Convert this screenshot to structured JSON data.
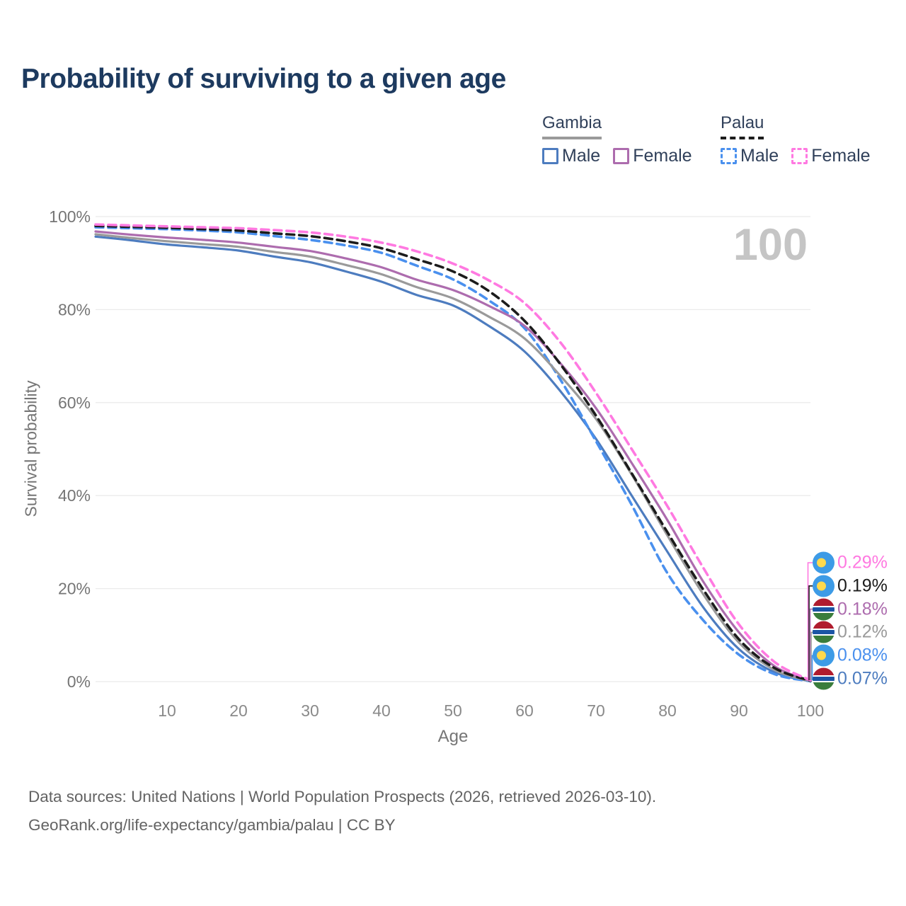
{
  "title": "Probability of surviving to a given age",
  "legend": {
    "groups": [
      {
        "name": "Gambia",
        "style": "solid",
        "items": [
          {
            "label": "Male",
            "sex": "Male"
          },
          {
            "label": "Female",
            "sex": "Female"
          }
        ]
      },
      {
        "name": "Palau",
        "style": "dashed",
        "items": [
          {
            "label": "Male",
            "sex": "Male"
          },
          {
            "label": "Female",
            "sex": "Female"
          }
        ]
      }
    ]
  },
  "chart_data": {
    "type": "line",
    "title": "Probability of surviving to a given age",
    "xlabel": "Age",
    "ylabel": "Survival probability",
    "xlim": [
      0,
      100
    ],
    "ylim": [
      0,
      100
    ],
    "grid": true,
    "legend_position": "top-right",
    "hover_age": "100",
    "x_ticks": [
      10,
      20,
      30,
      40,
      50,
      60,
      70,
      80,
      90,
      100
    ],
    "y_tick_labels": [
      "0%",
      "20%",
      "40%",
      "60%",
      "80%",
      "100%"
    ],
    "ages": [
      0,
      5,
      10,
      15,
      20,
      25,
      30,
      35,
      40,
      45,
      50,
      55,
      60,
      65,
      70,
      75,
      80,
      85,
      90,
      95,
      100
    ],
    "series": [
      {
        "name": "Palau Female",
        "country": "Palau",
        "sex": "Female",
        "line": "dashed",
        "color": "#ff79e1",
        "end_label": "0.29%",
        "flag": "palau",
        "values": [
          98.3,
          98.1,
          97.9,
          97.7,
          97.5,
          97.1,
          96.6,
          95.7,
          94.4,
          92.5,
          89.9,
          86.3,
          81.4,
          73.0,
          62.1,
          50.0,
          37.7,
          24.5,
          12.3,
          4.2,
          0.29
        ]
      },
      {
        "name": "Palau",
        "country": "Palau",
        "sex": "Total",
        "line": "dashed",
        "color": "#1c1c1c",
        "end_label": "0.19%",
        "flag": "palau",
        "values": [
          98.0,
          97.8,
          97.6,
          97.3,
          97.0,
          96.4,
          95.8,
          94.7,
          93.2,
          90.8,
          88.2,
          84.0,
          77.6,
          68.3,
          57.2,
          44.8,
          32.1,
          19.8,
          9.1,
          2.9,
          0.19
        ]
      },
      {
        "name": "Gambia Female",
        "country": "Gambia",
        "sex": "Female",
        "line": "solid",
        "color": "#ad6cae",
        "end_label": "0.18%",
        "flag": "gambia",
        "values": [
          96.8,
          96.1,
          95.5,
          95.0,
          94.4,
          93.5,
          92.6,
          91.0,
          89.1,
          86.4,
          84.2,
          80.8,
          76.5,
          68.5,
          58.8,
          47.0,
          34.7,
          21.5,
          10.6,
          3.3,
          0.18
        ]
      },
      {
        "name": "Gambia",
        "country": "Gambia",
        "sex": "Total",
        "line": "solid",
        "color": "#9a9a9a",
        "end_label": "0.12%",
        "flag": "gambia",
        "values": [
          96.2,
          95.4,
          94.7,
          94.1,
          93.5,
          92.4,
          91.4,
          89.6,
          87.6,
          84.8,
          82.4,
          78.5,
          73.8,
          65.8,
          56.5,
          44.5,
          31.4,
          18.8,
          8.4,
          2.5,
          0.12
        ]
      },
      {
        "name": "Palau Male",
        "country": "Palau",
        "sex": "Male",
        "line": "dashed",
        "color": "#4a90ee",
        "end_label": "0.08%",
        "flag": "palau",
        "values": [
          97.7,
          97.5,
          97.3,
          97.0,
          96.6,
          95.8,
          95.0,
          93.8,
          92.2,
          89.4,
          86.5,
          82.0,
          76.0,
          65.0,
          51.7,
          38.0,
          23.3,
          13.2,
          5.8,
          1.6,
          0.08
        ]
      },
      {
        "name": "Gambia Male",
        "country": "Gambia",
        "sex": "Male",
        "line": "solid",
        "color": "#4d7cbf",
        "end_label": "0.07%",
        "flag": "gambia",
        "values": [
          95.7,
          94.9,
          94.0,
          93.4,
          92.7,
          91.4,
          90.2,
          88.2,
          86.0,
          83.1,
          80.9,
          76.5,
          71.0,
          62.5,
          52.2,
          40.0,
          27.9,
          16.0,
          7.0,
          2.0,
          0.07
        ]
      }
    ]
  },
  "footer": {
    "line1": "Data sources: United Nations | World Population Prospects (2026, retrieved 2026-03-10).",
    "line2": "GeoRank.org/life-expectancy/gambia/palau | CC BY"
  }
}
